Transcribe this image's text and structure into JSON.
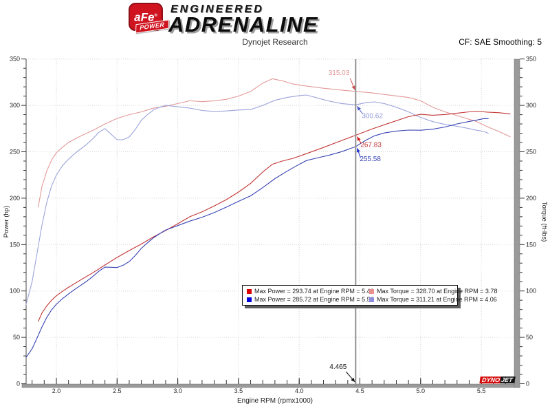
{
  "header": {
    "logo": {
      "badge": "aFe",
      "reg": "®",
      "ribbon": "POWER",
      "line1": "ENGINEERED",
      "line2": "ADRENALINE"
    },
    "title": "Dynojet Research",
    "cf_label": "CF: SAE Smoothing: 5"
  },
  "chart_data": {
    "type": "line",
    "xlabel": "Engine RPM (rpmx1000)",
    "ylabel_left": "Power (hp)",
    "ylabel_right": "Torque (ft-lbs)",
    "xlim": [
      1.75,
      5.77
    ],
    "ylim": [
      0,
      350
    ],
    "x_ticks": {
      "labels": [
        "2.0",
        "2.5",
        "3.0",
        "3.5",
        "4.0",
        "4.5",
        "5.0",
        "5.5"
      ],
      "values": [
        2.0,
        2.5,
        3.0,
        3.5,
        4.0,
        4.5,
        5.0,
        5.5
      ],
      "minor_step": 0.1,
      "minor_range": [
        1.8,
        5.7
      ]
    },
    "y_ticks": {
      "major_step": 50,
      "minor_step": 10,
      "range": [
        0,
        350
      ]
    },
    "grid": "dotted",
    "hp_per_ftlb_krpm": 5.252,
    "series": [
      {
        "id": "torque-red",
        "kind": "torque",
        "color": "#e39898",
        "points": [
          [
            1.85,
            190
          ],
          [
            1.88,
            212
          ],
          [
            1.92,
            229
          ],
          [
            1.96,
            241
          ],
          [
            2.0,
            249
          ],
          [
            2.05,
            255
          ],
          [
            2.1,
            260
          ],
          [
            2.2,
            267
          ],
          [
            2.3,
            273
          ],
          [
            2.4,
            280
          ],
          [
            2.5,
            286
          ],
          [
            2.6,
            290
          ],
          [
            2.7,
            293
          ],
          [
            2.8,
            297
          ],
          [
            2.9,
            299
          ],
          [
            3.0,
            302
          ],
          [
            3.1,
            305
          ],
          [
            3.15,
            304.5
          ],
          [
            3.2,
            304
          ],
          [
            3.3,
            305
          ],
          [
            3.4,
            306.5
          ],
          [
            3.5,
            310
          ],
          [
            3.6,
            315
          ],
          [
            3.7,
            324
          ],
          [
            3.78,
            328.7
          ],
          [
            3.86,
            326.5
          ],
          [
            3.95,
            323
          ],
          [
            4.05,
            321
          ],
          [
            4.2,
            318.5
          ],
          [
            4.35,
            316.5
          ],
          [
            4.465,
            315.03
          ],
          [
            4.6,
            313.5
          ],
          [
            4.75,
            311
          ],
          [
            4.9,
            308.5
          ],
          [
            5.0,
            305
          ],
          [
            5.1,
            298
          ],
          [
            5.2,
            293
          ],
          [
            5.3,
            289
          ],
          [
            5.4,
            285
          ],
          [
            5.46,
            282.6
          ],
          [
            5.55,
            277
          ],
          [
            5.65,
            271.5
          ],
          [
            5.74,
            266
          ]
        ]
      },
      {
        "id": "torque-blue",
        "kind": "torque",
        "color": "#9aa3da",
        "points": [
          [
            1.75,
            85
          ],
          [
            1.8,
            110
          ],
          [
            1.84,
            140
          ],
          [
            1.88,
            170
          ],
          [
            1.92,
            195
          ],
          [
            1.96,
            213
          ],
          [
            2.0,
            225
          ],
          [
            2.05,
            235
          ],
          [
            2.1,
            242
          ],
          [
            2.15,
            248
          ],
          [
            2.2,
            253
          ],
          [
            2.25,
            258
          ],
          [
            2.3,
            264
          ],
          [
            2.35,
            271
          ],
          [
            2.4,
            275
          ],
          [
            2.45,
            269
          ],
          [
            2.5,
            263
          ],
          [
            2.55,
            263
          ],
          [
            2.6,
            266
          ],
          [
            2.65,
            274
          ],
          [
            2.7,
            284
          ],
          [
            2.75,
            290
          ],
          [
            2.8,
            295
          ],
          [
            2.85,
            298
          ],
          [
            2.9,
            300
          ],
          [
            3.0,
            298.5
          ],
          [
            3.1,
            297
          ],
          [
            3.2,
            294.5
          ],
          [
            3.3,
            293.5
          ],
          [
            3.4,
            294
          ],
          [
            3.5,
            295
          ],
          [
            3.6,
            295.5
          ],
          [
            3.7,
            300
          ],
          [
            3.8,
            305.5
          ],
          [
            3.9,
            308.5
          ],
          [
            4.0,
            310.5
          ],
          [
            4.06,
            311.21
          ],
          [
            4.15,
            308
          ],
          [
            4.25,
            304.5
          ],
          [
            4.35,
            302
          ],
          [
            4.465,
            300.62
          ],
          [
            4.55,
            303
          ],
          [
            4.62,
            303.8
          ],
          [
            4.7,
            302
          ],
          [
            4.8,
            298
          ],
          [
            4.9,
            293
          ],
          [
            5.0,
            287
          ],
          [
            5.1,
            282.5
          ],
          [
            5.2,
            279.5
          ],
          [
            5.3,
            277.5
          ],
          [
            5.4,
            275
          ],
          [
            5.45,
            273.5
          ],
          [
            5.52,
            271.85
          ],
          [
            5.56,
            269.8
          ]
        ]
      },
      {
        "id": "power-red",
        "kind": "power",
        "derived_from": "torque-red",
        "color": "#c23535"
      },
      {
        "id": "power-blue",
        "kind": "power",
        "derived_from": "torque-blue",
        "color": "#3743b5"
      }
    ],
    "cursor": {
      "rpm": 4.465,
      "label": "4.465",
      "color": "#909090",
      "readouts": [
        {
          "series": "torque-red",
          "value": 315.03,
          "label": "315.03",
          "text_color": "#e08f8f",
          "arrow_color": "#d05050"
        },
        {
          "series": "torque-blue",
          "value": 300.62,
          "label": "300.62",
          "text_color": "#8d97d8",
          "arrow_color": "#4b58c9"
        },
        {
          "series": "power-red",
          "value": 267.83,
          "label": "267.83",
          "text_color": "#c23535",
          "arrow_color": "#d01818"
        },
        {
          "series": "power-blue",
          "value": 255.58,
          "label": "255.58",
          "text_color": "#3743b5",
          "arrow_color": "#2433cc"
        }
      ]
    },
    "legend": [
      {
        "color": "#dd0000",
        "text": "Max Power = 293.74 at Engine RPM = 5.46"
      },
      {
        "color": "#e88f8f",
        "text": "Max Torque = 328.70 at Engine RPM = 3.78"
      },
      {
        "color": "#0000dd",
        "text": "Max Power = 285.72 at Engine RPM = 5.52"
      },
      {
        "color": "#8f8fe0",
        "text": "Max Torque = 311.21 at Engine RPM = 4.06"
      }
    ]
  },
  "footer_logo": {
    "dyno": "DYNO",
    "jet": "JET"
  }
}
